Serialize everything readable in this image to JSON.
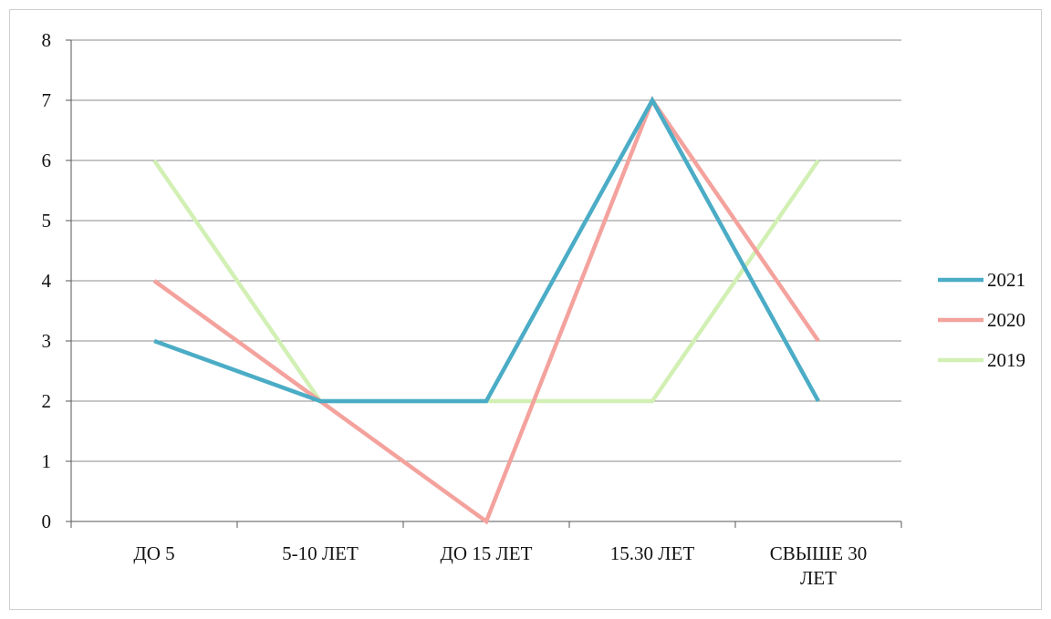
{
  "chart_data": {
    "type": "line",
    "categories": [
      "ДО 5",
      "5-10 ЛЕТ",
      "ДО 15 ЛЕТ",
      "15.30 ЛЕТ",
      "СВЫШЕ 30 ЛЕТ"
    ],
    "series": [
      {
        "name": "2021",
        "color": "#4bacc6",
        "values": [
          3,
          2,
          2,
          7,
          2
        ]
      },
      {
        "name": "2020",
        "color": "#f4a29d",
        "values": [
          4,
          2,
          0,
          7,
          3
        ]
      },
      {
        "name": "2019",
        "color": "#d2f0b4",
        "values": [
          6,
          2,
          2,
          2,
          6
        ]
      }
    ],
    "ylim": [
      0,
      8
    ],
    "yticks": [
      "0",
      "1",
      "2",
      "3",
      "4",
      "5",
      "6",
      "7",
      "8"
    ],
    "grid": true,
    "legend_position": "right"
  }
}
